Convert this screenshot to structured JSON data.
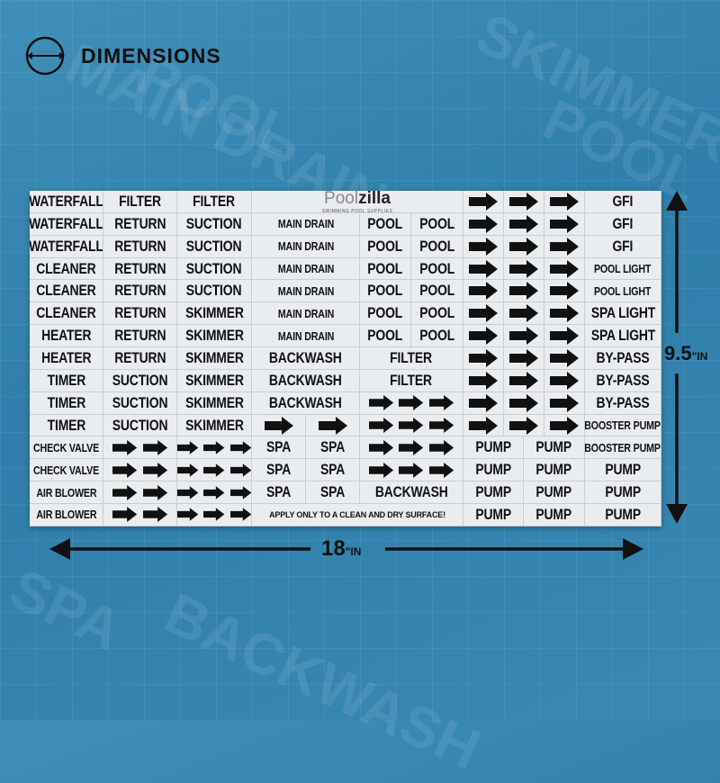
{
  "header": {
    "title": "DIMENSIONS",
    "icon": "double-arrow-circle-icon"
  },
  "watermark": [
    "MAIN DRAIN",
    "POOL",
    "SKIMMER",
    "SPA",
    "BACKWASH",
    "POOL"
  ],
  "dimensions": {
    "height_value": "9.5",
    "height_unit": "\"IN",
    "width_value": "18",
    "width_unit": "\"IN"
  },
  "sheet": {
    "logo": {
      "brand_light": "Pool",
      "brand_bold": "zilla",
      "subtitle": "SWIMMING POOL SUPPLIES"
    },
    "rows": [
      {
        "cells": [
          {
            "t": "WATERFALL"
          },
          {
            "t": "FILTER"
          },
          {
            "t": "FILTER"
          },
          {
            "logo": true
          },
          {
            "a": 1
          },
          {
            "a": 1
          },
          {
            "a": 1
          },
          {
            "t": "GFI"
          }
        ]
      },
      {
        "cells": [
          {
            "t": "WATERFALL"
          },
          {
            "t": "RETURN"
          },
          {
            "t": "SUCTION"
          },
          {
            "t": "MAIN DRAIN"
          },
          {
            "t": "POOL"
          },
          {
            "t": "POOL"
          },
          {
            "a": 1
          },
          {
            "a": 1
          },
          {
            "a": 1
          },
          {
            "t": "GFI"
          }
        ]
      },
      {
        "cells": [
          {
            "t": "WATERFALL"
          },
          {
            "t": "RETURN"
          },
          {
            "t": "SUCTION"
          },
          {
            "t": "MAIN DRAIN"
          },
          {
            "t": "POOL"
          },
          {
            "t": "POOL"
          },
          {
            "a": 1
          },
          {
            "a": 1
          },
          {
            "a": 1
          },
          {
            "t": "GFI"
          }
        ]
      },
      {
        "cells": [
          {
            "t": "CLEANER"
          },
          {
            "t": "RETURN"
          },
          {
            "t": "SUCTION"
          },
          {
            "t": "MAIN DRAIN"
          },
          {
            "t": "POOL"
          },
          {
            "t": "POOL"
          },
          {
            "a": 1
          },
          {
            "a": 1
          },
          {
            "a": 1
          },
          {
            "t": "POOL LIGHT"
          }
        ]
      },
      {
        "cells": [
          {
            "t": "CLEANER"
          },
          {
            "t": "RETURN"
          },
          {
            "t": "SUCTION"
          },
          {
            "t": "MAIN DRAIN"
          },
          {
            "t": "POOL"
          },
          {
            "t": "POOL"
          },
          {
            "a": 1
          },
          {
            "a": 1
          },
          {
            "a": 1
          },
          {
            "t": "POOL LIGHT"
          }
        ]
      },
      {
        "cells": [
          {
            "t": "CLEANER"
          },
          {
            "t": "RETURN"
          },
          {
            "t": "SKIMMER"
          },
          {
            "t": "MAIN DRAIN"
          },
          {
            "t": "POOL"
          },
          {
            "t": "POOL"
          },
          {
            "a": 1
          },
          {
            "a": 1
          },
          {
            "a": 1
          },
          {
            "t": "SPA LIGHT"
          }
        ]
      },
      {
        "cells": [
          {
            "t": "HEATER"
          },
          {
            "t": "RETURN"
          },
          {
            "t": "SKIMMER"
          },
          {
            "t": "MAIN DRAIN"
          },
          {
            "t": "POOL"
          },
          {
            "t": "POOL"
          },
          {
            "a": 1
          },
          {
            "a": 1
          },
          {
            "a": 1
          },
          {
            "t": "SPA LIGHT"
          }
        ]
      },
      {
        "cells": [
          {
            "t": "HEATER"
          },
          {
            "t": "RETURN"
          },
          {
            "t": "SKIMMER"
          },
          {
            "t": "BACKWASH"
          },
          {
            "t": "FILTER"
          },
          {
            "a": 1
          },
          {
            "a": 1
          },
          {
            "a": 1
          },
          {
            "t": "BY-PASS"
          }
        ]
      },
      {
        "cells": [
          {
            "t": "TIMER"
          },
          {
            "t": "SUCTION"
          },
          {
            "t": "SKIMMER"
          },
          {
            "t": "BACKWASH"
          },
          {
            "t": "FILTER"
          },
          {
            "a": 1
          },
          {
            "a": 1
          },
          {
            "a": 1
          },
          {
            "t": "BY-PASS"
          }
        ]
      },
      {
        "cells": [
          {
            "t": "TIMER"
          },
          {
            "t": "SUCTION"
          },
          {
            "t": "SKIMMER"
          },
          {
            "t": "BACKWASH"
          },
          {
            "a": 3
          },
          {
            "a": 1
          },
          {
            "a": 1
          },
          {
            "a": 1
          },
          {
            "t": "BY-PASS"
          }
        ]
      },
      {
        "cells": [
          {
            "t": "TIMER"
          },
          {
            "t": "SUCTION"
          },
          {
            "t": "SKIMMER"
          },
          {
            "a": 1
          },
          {
            "a": 1
          },
          {
            "a": 3
          },
          {
            "a": 1
          },
          {
            "a": 1
          },
          {
            "a": 1
          },
          {
            "t": "BOOSTER PUMP"
          }
        ]
      },
      {
        "cells": [
          {
            "t": "CHECK VALVE"
          },
          {
            "a": 2
          },
          {
            "a": 3
          },
          {
            "t": "SPA"
          },
          {
            "t": "SPA"
          },
          {
            "a": 3
          },
          {
            "t": "PUMP"
          },
          {
            "t": "PUMP"
          },
          {
            "t": "BOOSTER PUMP"
          }
        ]
      },
      {
        "cells": [
          {
            "t": "CHECK VALVE"
          },
          {
            "a": 2
          },
          {
            "a": 3
          },
          {
            "t": "SPA"
          },
          {
            "t": "SPA"
          },
          {
            "a": 3
          },
          {
            "t": "PUMP"
          },
          {
            "t": "PUMP"
          },
          {
            "t": "PUMP"
          }
        ]
      },
      {
        "cells": [
          {
            "t": "AIR BLOWER"
          },
          {
            "a": 2
          },
          {
            "a": 3
          },
          {
            "t": "SPA"
          },
          {
            "t": "SPA"
          },
          {
            "t": "BACKWASH"
          },
          {
            "t": "PUMP"
          },
          {
            "t": "PUMP"
          },
          {
            "t": "PUMP"
          }
        ]
      },
      {
        "cells": [
          {
            "t": "AIR BLOWER"
          },
          {
            "a": 2
          },
          {
            "a": 3
          },
          {
            "t": "APPLY ONLY TO A CLEAN AND DRY SURFACE!"
          },
          {
            "t": "PUMP"
          },
          {
            "t": "PUMP"
          },
          {
            "t": "PUMP"
          }
        ]
      }
    ]
  }
}
